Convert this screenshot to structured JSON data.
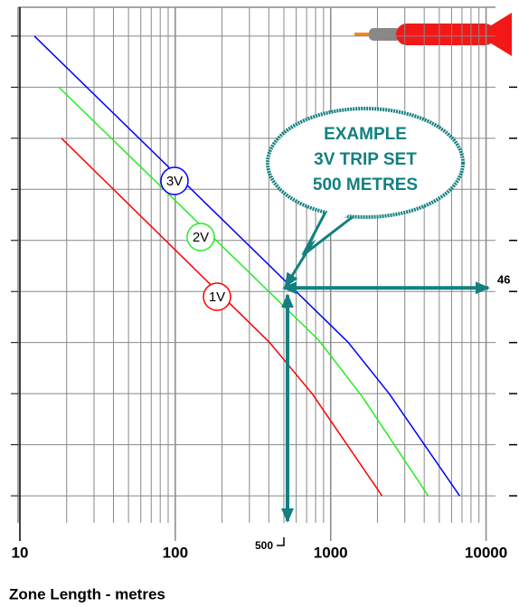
{
  "chart_data": {
    "type": "line",
    "x_scale": "log",
    "xlabel": "Zone Length - metres",
    "xlim": [
      10,
      11500
    ],
    "xticks": [
      10,
      100,
      1000,
      10000
    ],
    "ylim": [
      36.94,
      57.13
    ],
    "ygrid": [
      56,
      54,
      52,
      50,
      48,
      46,
      44,
      42,
      40,
      38
    ],
    "yticks": [
      {
        "value": 46,
        "label": "46"
      }
    ],
    "grid": true,
    "series": [
      {
        "name": "3V",
        "color": "#0000ff",
        "x": [
          12.4,
          1300,
          2380,
          6760
        ],
        "values": [
          56,
          44,
          42,
          38
        ]
      },
      {
        "name": "2V",
        "color": "#22ee22",
        "x": [
          17.8,
          836,
          1590,
          4240
        ],
        "values": [
          54,
          44.1,
          41.9,
          38
        ]
      },
      {
        "name": "1V",
        "color": "#ff0000",
        "x": [
          18.5,
          405,
          760,
          2140
        ],
        "values": [
          52,
          44,
          42,
          38
        ]
      }
    ],
    "marker_x": {
      "value": 500,
      "label": "500"
    },
    "annotation": [
      "EXAMPLE",
      "3V TRIP SET",
      "500 METRES"
    ],
    "annotation_color": "#128080"
  }
}
